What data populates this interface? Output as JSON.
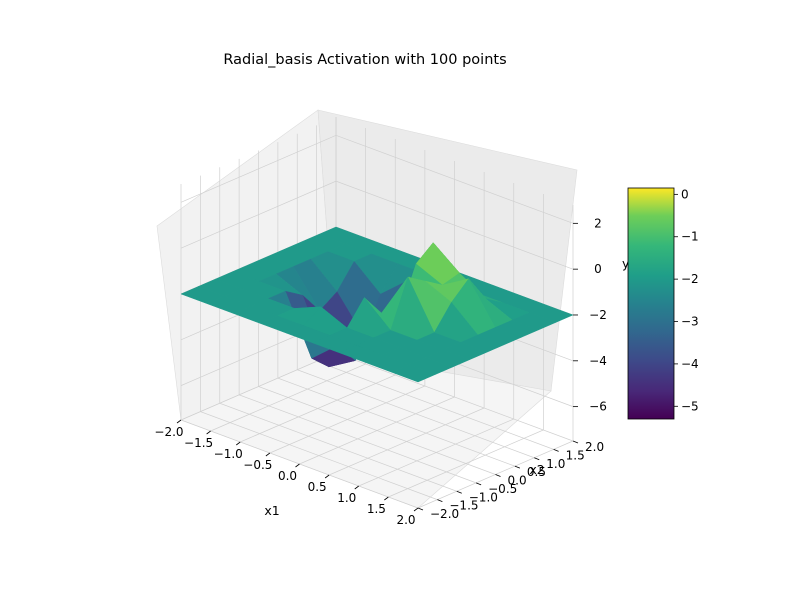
{
  "chart_data": {
    "type": "surface",
    "title": "Radial_basis Activation with 100 points",
    "xlabel": "x1",
    "ylabel": "x2",
    "zlabel": "y",
    "x_ticks": [
      "−2.0",
      "−1.5",
      "−1.0",
      "−0.5",
      "0.0",
      "0.5",
      "1.0",
      "1.5",
      "2.0"
    ],
    "y_ticks": [
      "−2.0",
      "−1.5",
      "−1.0",
      "−0.5",
      "0.0",
      "0.5",
      "1.0",
      "1.5",
      "2.0"
    ],
    "z_ticks": [
      "2",
      "0",
      "−2",
      "−4",
      "−6"
    ],
    "colorbar_ticks": [
      "0",
      "−1",
      "−2",
      "−3",
      "−4",
      "−5"
    ],
    "xlim": [
      -2,
      2
    ],
    "ylim": [
      -2,
      2
    ],
    "zlim": [
      -7.5,
      2.8
    ],
    "colorbar_range": [
      -5.3,
      0.15
    ],
    "colormap": "viridis",
    "grid": true,
    "grid_size": 10,
    "x": [
      -2.0,
      -1.556,
      -1.111,
      -0.667,
      -0.222,
      0.222,
      0.667,
      1.111,
      1.556,
      2.0
    ],
    "y": [
      -2.0,
      -1.556,
      -1.111,
      -0.667,
      -0.222,
      0.222,
      0.667,
      1.111,
      1.556,
      2.0
    ],
    "z": [
      [
        -2,
        -2,
        -2,
        -2,
        -2,
        -2,
        -2,
        -2,
        -2,
        -2
      ],
      [
        -2,
        -2,
        -2,
        -2,
        -2,
        -2,
        -2,
        -2,
        -2,
        -2
      ],
      [
        -2,
        -2,
        -2,
        -2,
        -1.5,
        -2,
        -2,
        -2,
        -2,
        -2
      ],
      [
        -2,
        -2,
        -2,
        -4.5,
        -3.5,
        -1,
        -2,
        -2,
        -2,
        -2
      ],
      [
        -2,
        -2,
        -2.5,
        -5.2,
        -4.5,
        -2,
        0,
        -2,
        -2,
        -2
      ],
      [
        -2,
        -2,
        -3.5,
        -5.0,
        -3,
        -2.5,
        -0.5,
        -1,
        -2,
        -2
      ],
      [
        -2,
        -2,
        -3,
        -4.5,
        -3.5,
        -0.5,
        -1,
        -0.3,
        -2,
        -2
      ],
      [
        -2,
        -2,
        -2,
        -3,
        -2,
        0.1,
        -0.8,
        -1.5,
        -2,
        -2
      ],
      [
        -2,
        -2,
        -2,
        -2,
        -2,
        -2,
        -2,
        -2,
        -2,
        -2
      ],
      [
        -2,
        -2,
        -2,
        -2,
        -2,
        -2,
        -2,
        -2,
        -2,
        -2
      ]
    ]
  }
}
